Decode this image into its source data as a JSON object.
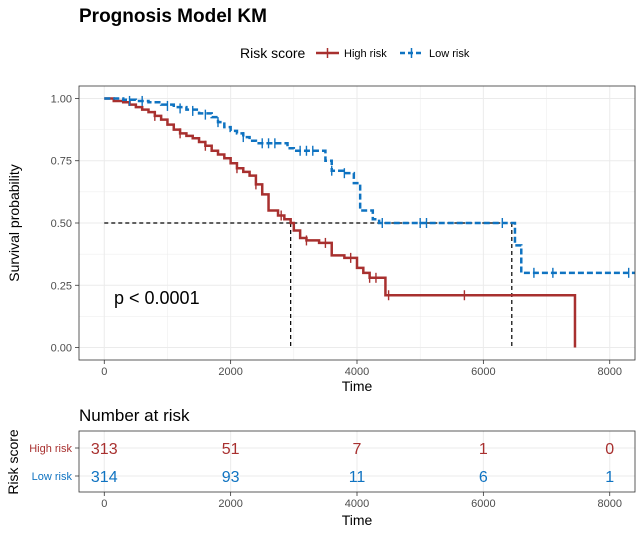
{
  "colors": {
    "high": "#a8302f",
    "low": "#0f73c1",
    "grid": "#ebebeb",
    "panel_border": "#333333"
  },
  "chart_data": {
    "type": "line",
    "title": "Prognosis Model KM",
    "xlabel": "Time",
    "ylabel": "Survival probability",
    "xlim": [
      -400,
      8400
    ],
    "ylim": [
      -0.05,
      1.05
    ],
    "xticks": [
      0,
      2000,
      4000,
      6000,
      8000
    ],
    "yticks": [
      0.0,
      0.25,
      0.5,
      0.75,
      1.0
    ],
    "ytick_labels": [
      "0.00",
      "0.25",
      "0.50",
      "0.75",
      "1.00"
    ],
    "grid": true,
    "legend": {
      "title": "Risk score",
      "placement": "top",
      "entries": [
        {
          "label": "High risk"
        },
        {
          "label": "Low risk"
        }
      ]
    },
    "annotation": "p < 0.0001",
    "median_lines": {
      "y": 0.5,
      "x": [
        2950,
        6450
      ]
    },
    "series": [
      {
        "name": "High risk",
        "style": "solid",
        "points": [
          [
            0,
            1.0
          ],
          [
            150,
            0.99
          ],
          [
            300,
            0.985
          ],
          [
            400,
            0.975
          ],
          [
            500,
            0.965
          ],
          [
            600,
            0.955
          ],
          [
            700,
            0.945
          ],
          [
            800,
            0.93
          ],
          [
            900,
            0.915
          ],
          [
            1000,
            0.895
          ],
          [
            1100,
            0.875
          ],
          [
            1200,
            0.86
          ],
          [
            1300,
            0.85
          ],
          [
            1400,
            0.84
          ],
          [
            1500,
            0.825
          ],
          [
            1600,
            0.81
          ],
          [
            1700,
            0.79
          ],
          [
            1800,
            0.775
          ],
          [
            1900,
            0.76
          ],
          [
            2000,
            0.74
          ],
          [
            2100,
            0.72
          ],
          [
            2200,
            0.705
          ],
          [
            2300,
            0.69
          ],
          [
            2400,
            0.655
          ],
          [
            2500,
            0.615
          ],
          [
            2600,
            0.55
          ],
          [
            2750,
            0.53
          ],
          [
            2850,
            0.515
          ],
          [
            2950,
            0.5
          ],
          [
            3000,
            0.47
          ],
          [
            3100,
            0.44
          ],
          [
            3200,
            0.43
          ],
          [
            3400,
            0.42
          ],
          [
            3600,
            0.37
          ],
          [
            3800,
            0.36
          ],
          [
            4000,
            0.32
          ],
          [
            4100,
            0.3
          ],
          [
            4200,
            0.28
          ],
          [
            4450,
            0.21
          ],
          [
            7450,
            0.0
          ]
        ],
        "censor_marks": [
          [
            800,
            0.93
          ],
          [
            1200,
            0.86
          ],
          [
            1600,
            0.81
          ],
          [
            2100,
            0.72
          ],
          [
            2400,
            0.655
          ],
          [
            2800,
            0.53
          ],
          [
            3200,
            0.43
          ],
          [
            3500,
            0.42
          ],
          [
            3900,
            0.36
          ],
          [
            4200,
            0.28
          ],
          [
            4300,
            0.28
          ],
          [
            4500,
            0.21
          ],
          [
            5700,
            0.21
          ]
        ]
      },
      {
        "name": "Low risk",
        "style": "dashed",
        "points": [
          [
            0,
            1.0
          ],
          [
            300,
            0.995
          ],
          [
            500,
            0.99
          ],
          [
            700,
            0.985
          ],
          [
            900,
            0.975
          ],
          [
            1100,
            0.965
          ],
          [
            1300,
            0.955
          ],
          [
            1500,
            0.94
          ],
          [
            1700,
            0.925
          ],
          [
            1800,
            0.905
          ],
          [
            1900,
            0.885
          ],
          [
            2000,
            0.87
          ],
          [
            2100,
            0.86
          ],
          [
            2200,
            0.845
          ],
          [
            2300,
            0.83
          ],
          [
            2400,
            0.82
          ],
          [
            2800,
            0.82
          ],
          [
            2900,
            0.8
          ],
          [
            3000,
            0.79
          ],
          [
            3400,
            0.79
          ],
          [
            3500,
            0.75
          ],
          [
            3600,
            0.71
          ],
          [
            3800,
            0.7
          ],
          [
            3950,
            0.66
          ],
          [
            4050,
            0.55
          ],
          [
            4250,
            0.515
          ],
          [
            4350,
            0.5
          ],
          [
            6450,
            0.5
          ],
          [
            6500,
            0.41
          ],
          [
            6600,
            0.3
          ],
          [
            8400,
            0.3
          ]
        ],
        "censor_marks": [
          [
            400,
            0.99
          ],
          [
            600,
            0.99
          ],
          [
            1000,
            0.97
          ],
          [
            1200,
            0.96
          ],
          [
            1400,
            0.95
          ],
          [
            1600,
            0.935
          ],
          [
            1800,
            0.905
          ],
          [
            2200,
            0.845
          ],
          [
            2500,
            0.82
          ],
          [
            2600,
            0.82
          ],
          [
            2700,
            0.82
          ],
          [
            3100,
            0.79
          ],
          [
            3200,
            0.79
          ],
          [
            3300,
            0.79
          ],
          [
            3600,
            0.71
          ],
          [
            3800,
            0.7
          ],
          [
            4400,
            0.5
          ],
          [
            5000,
            0.5
          ],
          [
            5100,
            0.5
          ],
          [
            6300,
            0.5
          ],
          [
            6800,
            0.3
          ],
          [
            7100,
            0.3
          ],
          [
            8300,
            0.3
          ]
        ]
      }
    ],
    "risk_table": {
      "title": "Number at risk",
      "xlabel": "Time",
      "ylabel": "Risk score",
      "times": [
        0,
        2000,
        4000,
        6000,
        8000
      ],
      "rows": [
        {
          "label": "High risk",
          "values": [
            313,
            51,
            7,
            1,
            0
          ]
        },
        {
          "label": "Low risk",
          "values": [
            314,
            93,
            11,
            6,
            1
          ]
        }
      ]
    }
  }
}
